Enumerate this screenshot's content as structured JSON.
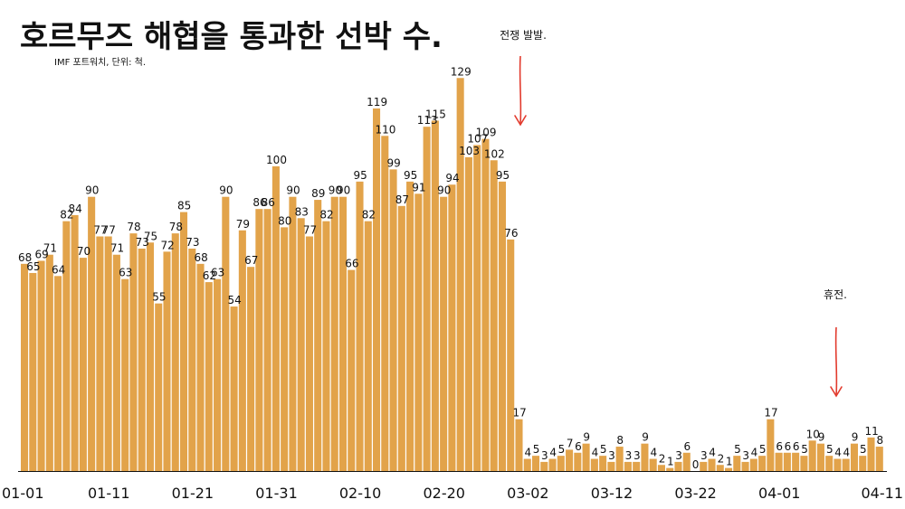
{
  "title": "호르무즈 해협을 통과한 선박 수.",
  "subtitle": "IMF 포트워치, 단위: 척.",
  "colors": {
    "bar": "#E2A34A",
    "arrow": "#E23B2E",
    "axis": "#111111"
  },
  "chart_data": {
    "type": "bar",
    "title": "호르무즈 해협을 통과한 선박 수.",
    "subtitle": "IMF 포트워치, 단위: 척.",
    "xlabel": "",
    "ylabel": "",
    "grid": false,
    "legend": "none",
    "ylim": [
      0,
      140
    ],
    "tick_labels": [
      "01-01",
      "01-11",
      "01-21",
      "01-31",
      "02-10",
      "02-20",
      "03-02",
      "03-12",
      "03-22",
      "04-01",
      "04-11"
    ],
    "tick_indices": [
      0,
      10,
      20,
      30,
      40,
      50,
      60,
      70,
      80,
      90,
      100
    ],
    "values": [
      68,
      65,
      69,
      71,
      64,
      82,
      84,
      70,
      90,
      77,
      77,
      71,
      63,
      78,
      73,
      75,
      55,
      72,
      78,
      85,
      73,
      68,
      62,
      63,
      90,
      54,
      79,
      67,
      86,
      86,
      100,
      80,
      90,
      83,
      77,
      89,
      82,
      90,
      90,
      66,
      95,
      82,
      119,
      110,
      99,
      87,
      95,
      91,
      113,
      115,
      90,
      94,
      129,
      103,
      107,
      109,
      102,
      95,
      76,
      17,
      4,
      5,
      3,
      4,
      5,
      7,
      6,
      9,
      4,
      5,
      3,
      8,
      3,
      3,
      9,
      4,
      2,
      1,
      3,
      6,
      0,
      3,
      4,
      2,
      1,
      5,
      3,
      4,
      5,
      17,
      6,
      6,
      6,
      5,
      10,
      9,
      5,
      4,
      4,
      9,
      5,
      11,
      8
    ],
    "annotations": [
      {
        "text": "전쟁 발발.",
        "index": 60
      },
      {
        "text": "휴전.",
        "index": 98
      }
    ]
  }
}
